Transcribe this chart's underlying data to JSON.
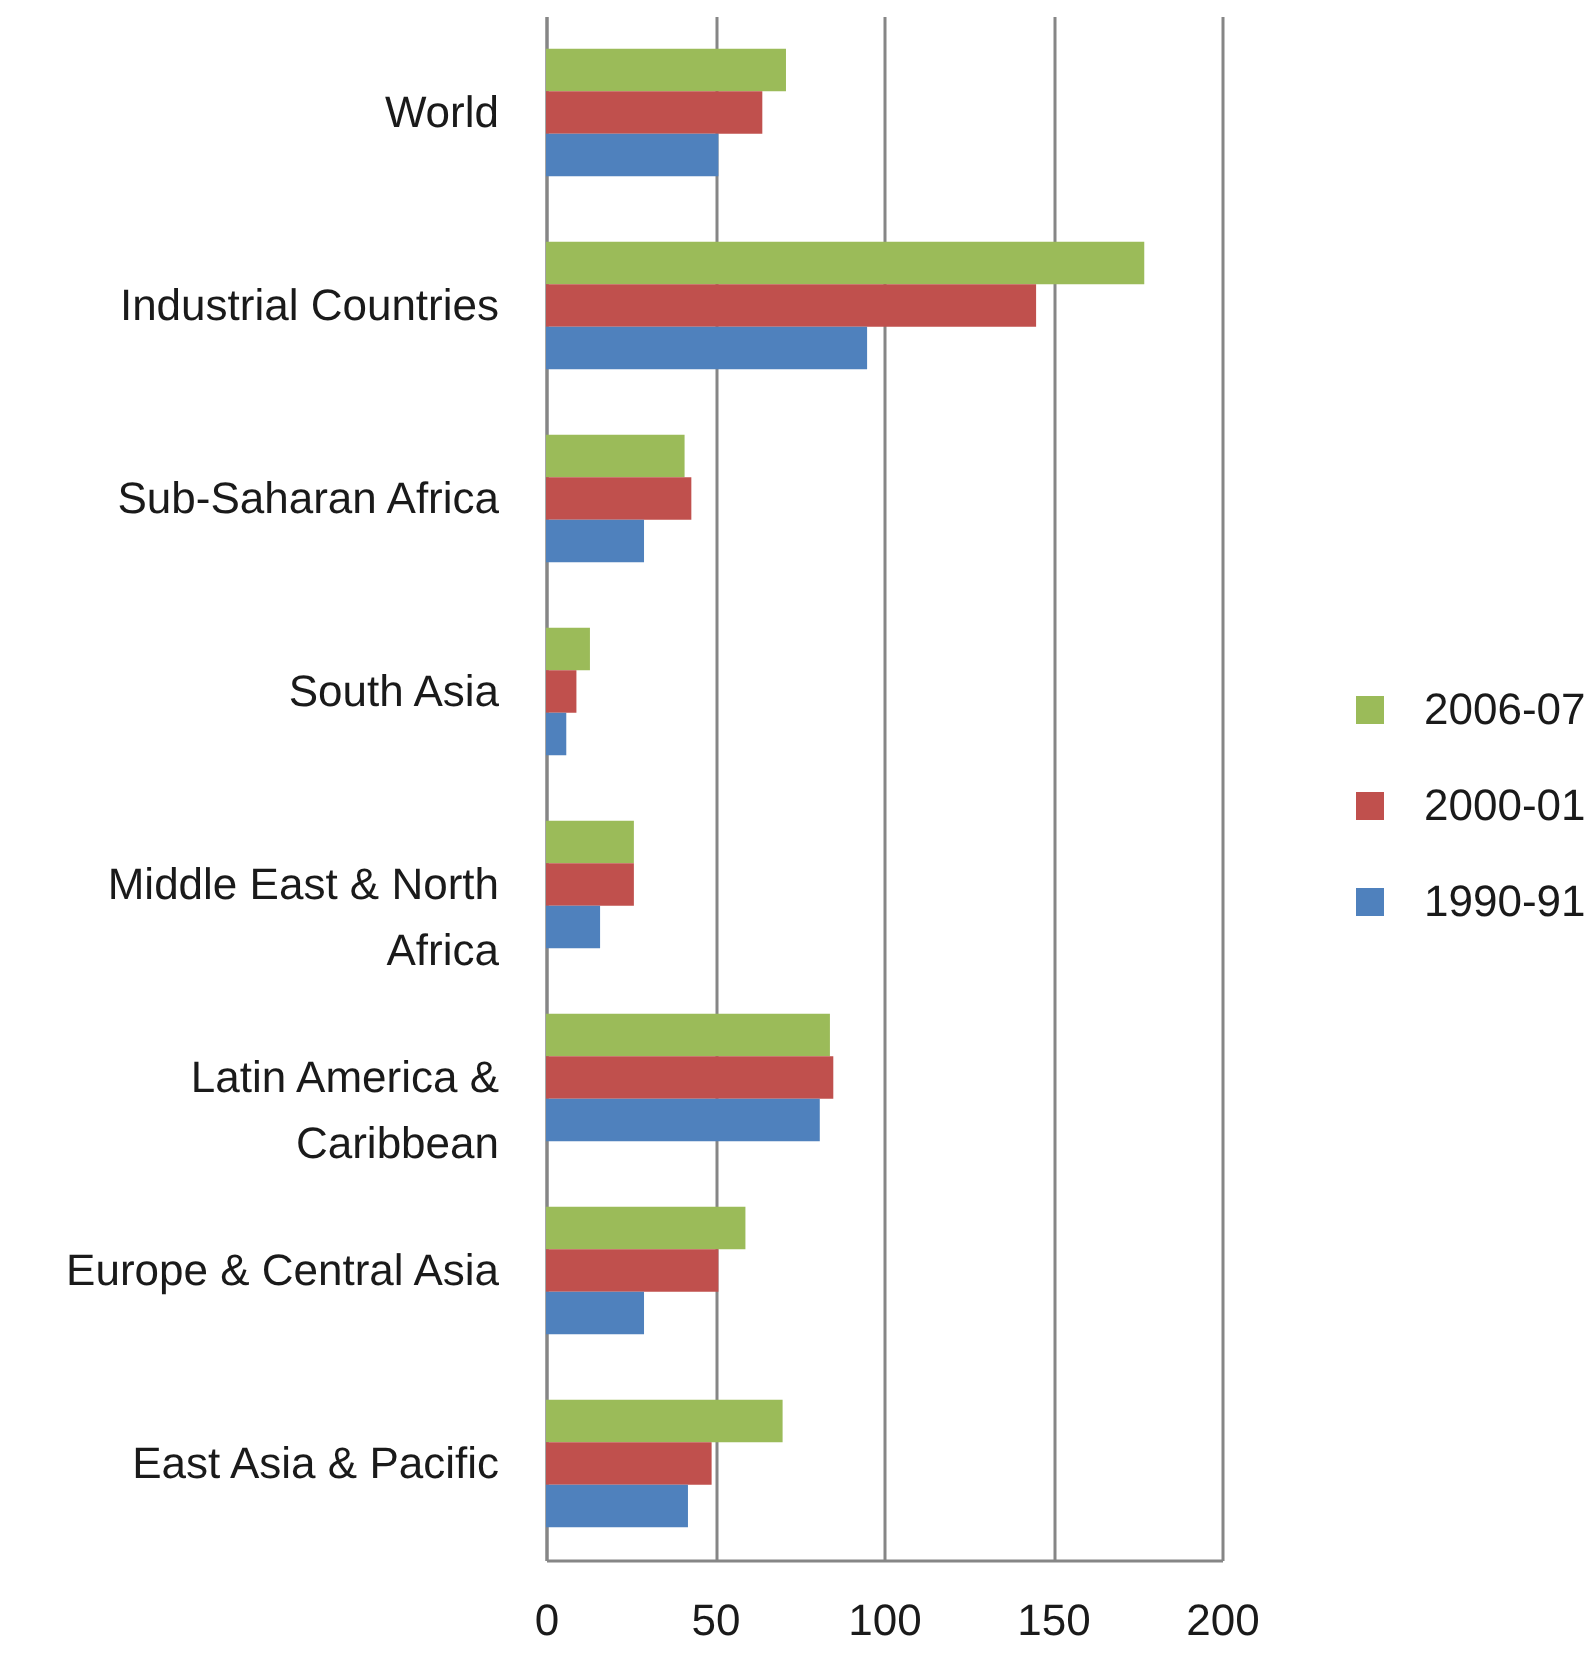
{
  "chart_data": {
    "type": "bar",
    "orientation": "horizontal",
    "categories": [
      "World",
      "Industrial Countries",
      "Sub-Saharan Africa",
      "South Asia",
      "Middle East & North Africa",
      "Latin America & Caribbean",
      "Europe & Central Asia",
      "East Asia & Pacific"
    ],
    "series": [
      {
        "name": "2006-07",
        "color": "#9bbb59",
        "values": [
          71,
          177,
          41,
          13,
          26,
          84,
          59,
          70
        ]
      },
      {
        "name": "2000-01",
        "color": "#c0504d",
        "values": [
          64,
          145,
          43,
          9,
          26,
          85,
          51,
          49
        ]
      },
      {
        "name": "1990-91",
        "color": "#4f81bd",
        "values": [
          51,
          95,
          29,
          6,
          16,
          81,
          29,
          42
        ]
      }
    ],
    "xlim": [
      0,
      200
    ],
    "xticks": [
      0,
      50,
      100,
      150,
      200
    ],
    "grid": "x",
    "legend": "right"
  }
}
